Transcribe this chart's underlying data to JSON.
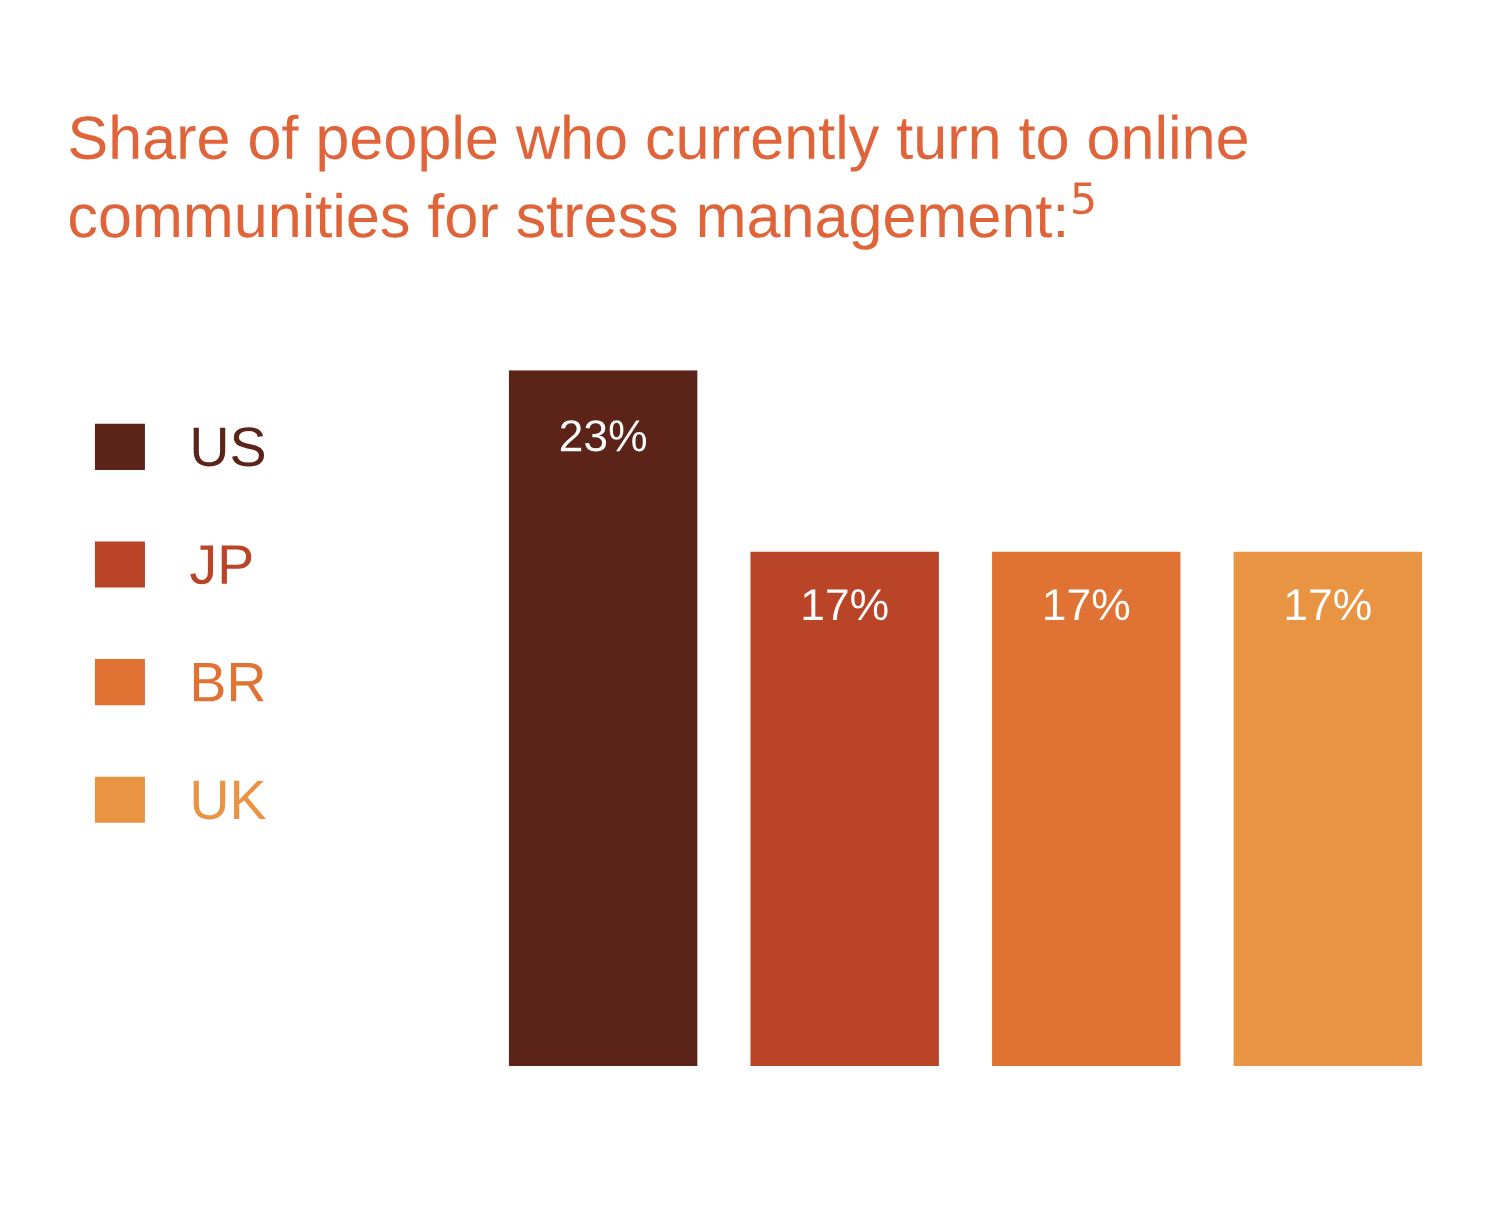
{
  "chart_data": {
    "type": "bar",
    "title": "Share of people who currently turn to online communities for stress management:$^{5}$",
    "categories": [
      null,
      null,
      null,
      null
    ],
    "series": [
      {
        "name": "US",
        "color": "#5c2318",
        "values": [
          23,
          null,
          null,
          null
        ],
        "value_labels": [
          "23%",
          null,
          null,
          null
        ]
      },
      {
        "name": "JP",
        "color": "#b94428",
        "values": [
          null,
          17,
          null,
          null
        ],
        "value_labels": [
          null,
          "17%",
          null,
          null
        ]
      },
      {
        "name": "BR",
        "color": "#e07233",
        "values": [
          null,
          null,
          17,
          null
        ],
        "value_labels": [
          null,
          null,
          "17%",
          null
        ]
      },
      {
        "name": "UK",
        "color": "#e89443",
        "values": [
          null,
          null,
          null,
          17
        ],
        "value_labels": [
          null,
          null,
          null,
          "17%"
        ]
      }
    ],
    "stacked": true,
    "legend": "left",
    "grid": false,
    "tick_labels": false
  }
}
